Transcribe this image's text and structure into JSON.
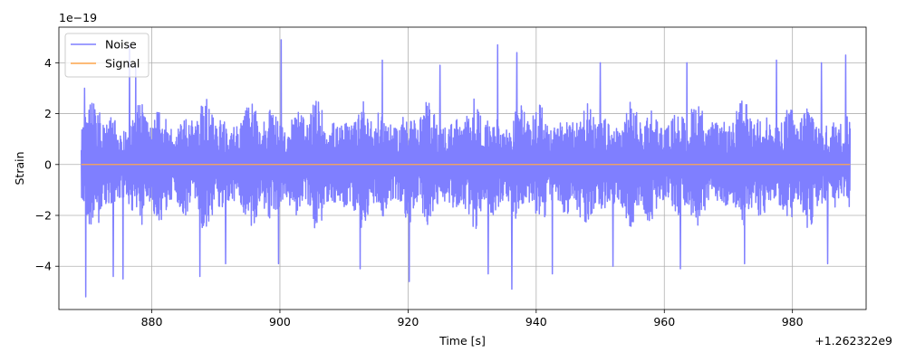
{
  "chart_data": {
    "type": "line",
    "title": "",
    "xlabel": "Time [s]",
    "ylabel": "Strain",
    "x_offset_label": "+1.262322e9",
    "y_scale_label": "1e−19",
    "xlim": [
      865.5,
      991.5
    ],
    "ylim": [
      -5.7,
      5.4
    ],
    "x_ticks": [
      880,
      900,
      920,
      940,
      960,
      980
    ],
    "x_tick_labels": [
      "880",
      "900",
      "920",
      "940",
      "960",
      "980"
    ],
    "y_ticks": [
      -4,
      -2,
      0,
      2,
      4
    ],
    "y_tick_labels": [
      "−4",
      "−2",
      "0",
      "2",
      "4"
    ],
    "grid": true,
    "legend_position": "upper-left",
    "series": [
      {
        "name": "Noise",
        "color": "#7f7fff",
        "x_start": 869,
        "x_end": 989,
        "typical_amplitude": 2.6,
        "extremes": [
          {
            "x": 869.7,
            "y": -5.2
          },
          {
            "x": 869.5,
            "y": 3.0
          },
          {
            "x": 874.0,
            "y": -4.4
          },
          {
            "x": 875.5,
            "y": -4.5
          },
          {
            "x": 876.5,
            "y": 4.7
          },
          {
            "x": 877.5,
            "y": 3.9
          },
          {
            "x": 887.5,
            "y": -4.4
          },
          {
            "x": 891.5,
            "y": -3.9
          },
          {
            "x": 899.8,
            "y": -3.9
          },
          {
            "x": 900.2,
            "y": 4.9
          },
          {
            "x": 912.5,
            "y": -4.1
          },
          {
            "x": 916.0,
            "y": 4.1
          },
          {
            "x": 920.2,
            "y": -4.6
          },
          {
            "x": 925.0,
            "y": 3.9
          },
          {
            "x": 932.5,
            "y": -4.3
          },
          {
            "x": 934.0,
            "y": 4.7
          },
          {
            "x": 936.2,
            "y": -4.9
          },
          {
            "x": 937.0,
            "y": 4.4
          },
          {
            "x": 942.5,
            "y": -4.3
          },
          {
            "x": 950.0,
            "y": 4.0
          },
          {
            "x": 952.0,
            "y": -4.0
          },
          {
            "x": 962.5,
            "y": -4.1
          },
          {
            "x": 963.5,
            "y": 4.0
          },
          {
            "x": 972.5,
            "y": -3.9
          },
          {
            "x": 977.5,
            "y": 4.1
          },
          {
            "x": 984.5,
            "y": 4.0
          },
          {
            "x": 985.5,
            "y": -3.9
          },
          {
            "x": 988.3,
            "y": 4.3
          }
        ]
      },
      {
        "name": "Signal",
        "color": "#ffa64d",
        "x": [
          869,
          989
        ],
        "y": [
          0,
          0
        ]
      }
    ]
  }
}
